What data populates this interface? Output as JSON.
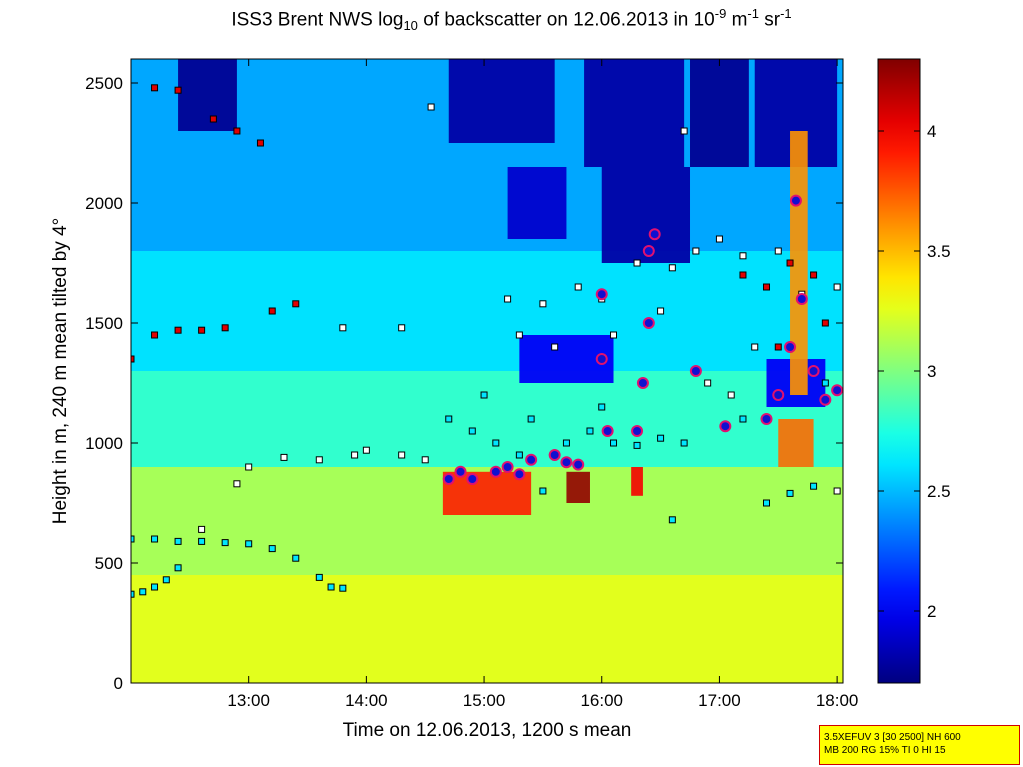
{
  "title": {
    "prefix": "ISS3 Brent NWS log",
    "sub": "10",
    "middle": " of backscatter on 12.06.2013 in 10",
    "sup1": "-9",
    "m_unit": " m",
    "sup2": "-1",
    "sr_unit": " sr",
    "sup3": "-1"
  },
  "settings_box": {
    "line1": "3.5XEFUV 3 [30 2500] NH 600",
    "line2": "MB 200 RG 15% TI 0 HI 15"
  },
  "chart_data": {
    "type": "heatmap",
    "xlabel": "Time on 12.06.2013, 1200 s mean",
    "ylabel": "Height in m, 240 m mean tilted by 4°",
    "x_range_hours": [
      12.0,
      18.05
    ],
    "y_range_m": [
      0,
      2600
    ],
    "x_ticks": [
      {
        "value": 13,
        "label": "13:00"
      },
      {
        "value": 14,
        "label": "14:00"
      },
      {
        "value": 15,
        "label": "15:00"
      },
      {
        "value": 16,
        "label": "16:00"
      },
      {
        "value": 17,
        "label": "17:00"
      },
      {
        "value": 18,
        "label": "18:00"
      }
    ],
    "y_ticks": [
      {
        "value": 0,
        "label": "0"
      },
      {
        "value": 500,
        "label": "500"
      },
      {
        "value": 1000,
        "label": "1000"
      },
      {
        "value": 1500,
        "label": "1500"
      },
      {
        "value": 2000,
        "label": "2000"
      },
      {
        "value": 2500,
        "label": "2500"
      }
    ],
    "colorbar": {
      "range": [
        1.7,
        4.3
      ],
      "ticks": [
        {
          "value": 2,
          "label": "2"
        },
        {
          "value": 2.5,
          "label": "2.5"
        },
        {
          "value": 3,
          "label": "3"
        },
        {
          "value": 3.5,
          "label": "3.5"
        },
        {
          "value": 4,
          "label": "4"
        }
      ],
      "colormap": "jet"
    },
    "background_field": {
      "description_free": true,
      "layers": [
        {
          "max_height_m": 450,
          "value": 3.25
        },
        {
          "max_height_m": 900,
          "value": 3.1
        },
        {
          "max_height_m": 1300,
          "value": 2.8
        },
        {
          "max_height_m": 1800,
          "value": 2.6
        },
        {
          "max_height_m": 2600,
          "value": 2.45
        }
      ],
      "low_regions": [
        {
          "x": [
            12.4,
            12.9
          ],
          "y": [
            2300,
            2600
          ],
          "value": 1.75
        },
        {
          "x": [
            14.7,
            15.6
          ],
          "y": [
            2250,
            2600
          ],
          "value": 1.8
        },
        {
          "x": [
            15.2,
            15.7
          ],
          "y": [
            1850,
            2150
          ],
          "value": 1.9
        },
        {
          "x": [
            15.85,
            16.7
          ],
          "y": [
            2150,
            2600
          ],
          "value": 1.8
        },
        {
          "x": [
            16.0,
            16.75
          ],
          "y": [
            1750,
            2150
          ],
          "value": 1.8
        },
        {
          "x": [
            16.75,
            17.25
          ],
          "y": [
            2150,
            2600
          ],
          "value": 1.75
        },
        {
          "x": [
            17.3,
            18.0
          ],
          "y": [
            2150,
            2600
          ],
          "value": 1.8
        },
        {
          "x": [
            15.3,
            16.1
          ],
          "y": [
            1250,
            1450
          ],
          "value": 2.0
        },
        {
          "x": [
            17.4,
            17.9
          ],
          "y": [
            1150,
            1350
          ],
          "value": 2.0
        }
      ],
      "high_regions": [
        {
          "x": [
            14.65,
            15.4
          ],
          "y": [
            700,
            880
          ],
          "value": 3.9
        },
        {
          "x": [
            15.7,
            15.9
          ],
          "y": [
            750,
            880
          ],
          "value": 4.25
        },
        {
          "x": [
            16.25,
            16.35
          ],
          "y": [
            780,
            900
          ],
          "value": 4.0
        },
        {
          "x": [
            17.5,
            17.8
          ],
          "y": [
            900,
            1100
          ],
          "value": 3.7
        },
        {
          "x": [
            17.6,
            17.75
          ],
          "y": [
            1200,
            2300
          ],
          "value": 3.6
        }
      ]
    },
    "marker_series": [
      {
        "marker": "square",
        "fill": "#00e5ff",
        "points": [
          [
            12.0,
            370
          ],
          [
            12.1,
            380
          ],
          [
            12.2,
            400
          ],
          [
            12.3,
            430
          ],
          [
            12.4,
            480
          ],
          [
            12.0,
            600
          ],
          [
            12.2,
            600
          ],
          [
            12.4,
            590
          ],
          [
            12.6,
            590
          ],
          [
            12.8,
            585
          ],
          [
            13.0,
            580
          ],
          [
            13.2,
            560
          ],
          [
            13.4,
            520
          ],
          [
            13.6,
            440
          ],
          [
            13.7,
            400
          ],
          [
            13.8,
            395
          ],
          [
            14.7,
            1100
          ],
          [
            14.9,
            1050
          ],
          [
            15.1,
            1000
          ],
          [
            15.3,
            950
          ],
          [
            15.5,
            800
          ],
          [
            15.7,
            1000
          ],
          [
            15.9,
            1050
          ],
          [
            16.1,
            1000
          ],
          [
            16.3,
            990
          ],
          [
            16.5,
            1020
          ],
          [
            16.7,
            1000
          ],
          [
            16.6,
            680
          ],
          [
            17.4,
            750
          ],
          [
            17.6,
            790
          ],
          [
            17.8,
            820
          ],
          [
            15.0,
            1200
          ],
          [
            15.4,
            1100
          ],
          [
            16.0,
            1150
          ],
          [
            17.2,
            1100
          ],
          [
            17.9,
            1250
          ]
        ]
      },
      {
        "marker": "square",
        "fill": "#ffffff",
        "points": [
          [
            12.6,
            640
          ],
          [
            12.9,
            830
          ],
          [
            13.0,
            900
          ],
          [
            13.3,
            940
          ],
          [
            13.6,
            930
          ],
          [
            13.9,
            950
          ],
          [
            14.0,
            970
          ],
          [
            14.3,
            950
          ],
          [
            14.5,
            930
          ],
          [
            13.8,
            1480
          ],
          [
            14.3,
            1480
          ],
          [
            14.55,
            2400
          ],
          [
            15.2,
            1600
          ],
          [
            15.5,
            1580
          ],
          [
            15.8,
            1650
          ],
          [
            16.0,
            1600
          ],
          [
            16.3,
            1750
          ],
          [
            16.6,
            1730
          ],
          [
            16.8,
            1800
          ],
          [
            17.0,
            1850
          ],
          [
            17.2,
            1780
          ],
          [
            17.5,
            1800
          ],
          [
            17.7,
            1620
          ],
          [
            18.0,
            1650
          ],
          [
            16.5,
            1550
          ],
          [
            15.3,
            1450
          ],
          [
            15.6,
            1400
          ],
          [
            16.1,
            1450
          ],
          [
            16.7,
            2300
          ],
          [
            16.9,
            1250
          ],
          [
            17.1,
            1200
          ],
          [
            17.3,
            1400
          ],
          [
            17.8,
            1300
          ],
          [
            18.0,
            800
          ]
        ]
      },
      {
        "marker": "square",
        "fill": "#e00000",
        "points": [
          [
            12.0,
            1350
          ],
          [
            12.2,
            1450
          ],
          [
            12.4,
            1470
          ],
          [
            12.6,
            1470
          ],
          [
            12.8,
            1480
          ],
          [
            12.2,
            2480
          ],
          [
            12.4,
            2470
          ],
          [
            12.7,
            2350
          ],
          [
            12.9,
            2300
          ],
          [
            13.1,
            2250
          ],
          [
            13.2,
            1550
          ],
          [
            13.4,
            1580
          ],
          [
            17.2,
            1700
          ],
          [
            17.4,
            1650
          ],
          [
            17.6,
            1750
          ],
          [
            17.8,
            1700
          ],
          [
            17.5,
            1400
          ],
          [
            17.9,
            1500
          ]
        ]
      },
      {
        "marker": "circle",
        "fill": "#1010d0",
        "stroke": "#e01070",
        "points": [
          [
            14.7,
            850
          ],
          [
            14.8,
            880
          ],
          [
            14.9,
            850
          ],
          [
            15.1,
            880
          ],
          [
            15.2,
            900
          ],
          [
            15.3,
            870
          ],
          [
            15.4,
            930
          ],
          [
            15.6,
            950
          ],
          [
            15.7,
            920
          ],
          [
            15.8,
            910
          ],
          [
            16.0,
            1350
          ],
          [
            16.0,
            1620
          ],
          [
            16.05,
            1050
          ],
          [
            16.3,
            1050
          ],
          [
            16.35,
            1250
          ],
          [
            16.4,
            1500
          ],
          [
            16.4,
            1800
          ],
          [
            16.45,
            1870
          ],
          [
            16.8,
            1300
          ],
          [
            17.05,
            1070
          ],
          [
            17.4,
            1100
          ],
          [
            17.5,
            1200
          ],
          [
            17.6,
            1400
          ],
          [
            17.65,
            2010
          ],
          [
            17.7,
            1600
          ],
          [
            17.8,
            1300
          ],
          [
            17.9,
            1180
          ],
          [
            18.0,
            1220
          ]
        ]
      }
    ]
  }
}
